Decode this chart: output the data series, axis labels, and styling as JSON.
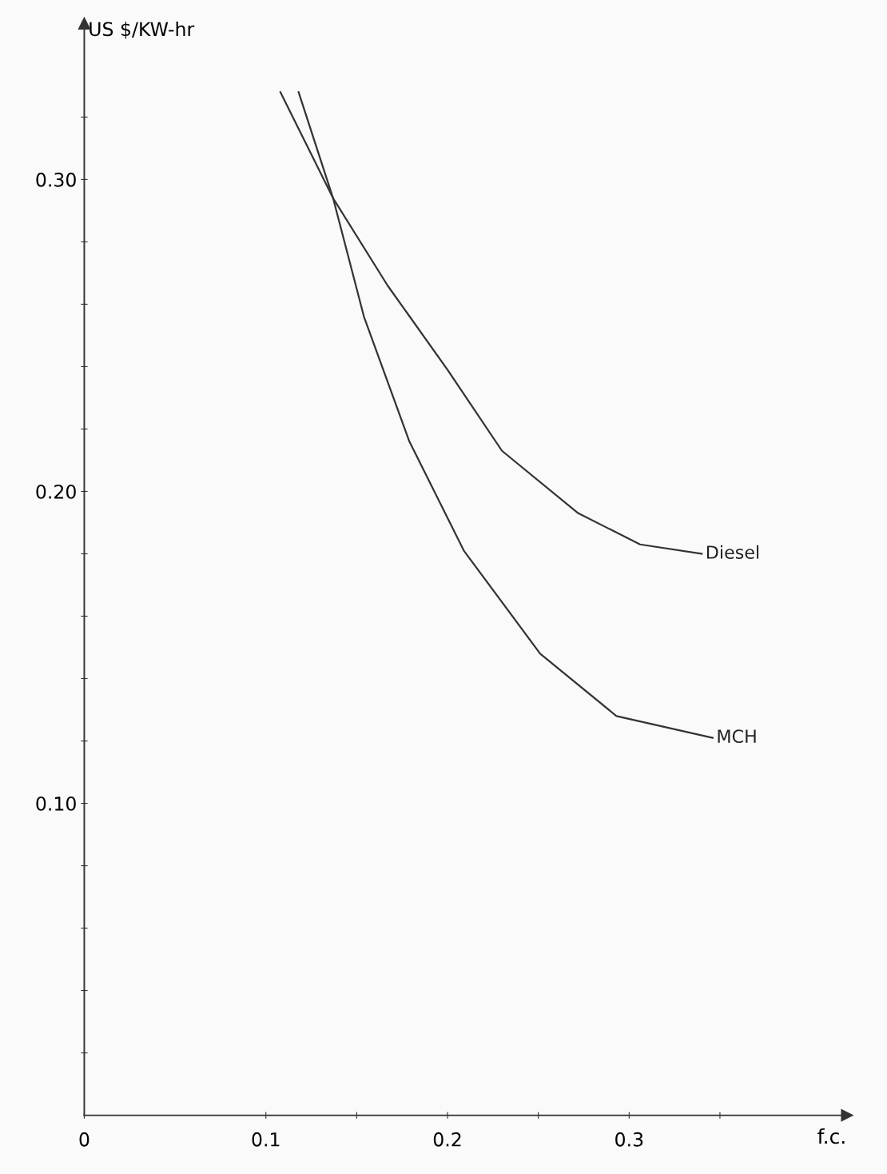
{
  "chart_data": {
    "type": "line",
    "ylabel": "US $/KW-hr",
    "xlabel": "f.c.",
    "xlim": [
      0,
      0.42
    ],
    "ylim": [
      0,
      0.35
    ],
    "xticks": [
      {
        "value": 0,
        "label": "0"
      },
      0.1,
      {
        "value": 0.15,
        "label": null
      },
      0.2,
      {
        "value": 0.25,
        "label": null
      },
      0.3,
      {
        "value": 0.35,
        "label": null
      }
    ],
    "yticks": [
      {
        "value": 0.02,
        "label": null
      },
      {
        "value": 0.04,
        "label": null
      },
      {
        "value": 0.06,
        "label": null
      },
      {
        "value": 0.08,
        "label": null
      },
      {
        "value": 0.1,
        "label": "0.10"
      },
      {
        "value": 0.12,
        "label": null
      },
      {
        "value": 0.14,
        "label": null
      },
      {
        "value": 0.16,
        "label": null
      },
      {
        "value": 0.18,
        "label": null
      },
      {
        "value": 0.2,
        "label": "0.20"
      },
      {
        "value": 0.22,
        "label": null
      },
      {
        "value": 0.24,
        "label": null
      },
      {
        "value": 0.26,
        "label": null
      },
      {
        "value": 0.28,
        "label": null
      },
      {
        "value": 0.3,
        "label": "0.30"
      },
      {
        "value": 0.32,
        "label": null
      }
    ],
    "grid": false,
    "legend": false,
    "marker": "none",
    "line_style": "solid",
    "series": [
      {
        "name": "Diesel",
        "color": "#333333",
        "x": [
          0.108,
          0.137,
          0.167,
          0.2,
          0.23,
          0.272,
          0.306,
          0.34
        ],
        "values": [
          0.328,
          0.294,
          0.266,
          0.239,
          0.213,
          0.193,
          0.183,
          0.18
        ]
      },
      {
        "name": "MCH",
        "color": "#333333",
        "x": [
          0.118,
          0.137,
          0.154,
          0.179,
          0.209,
          0.251,
          0.293,
          0.346
        ],
        "values": [
          0.328,
          0.294,
          0.256,
          0.216,
          0.181,
          0.148,
          0.128,
          0.121
        ]
      }
    ]
  }
}
